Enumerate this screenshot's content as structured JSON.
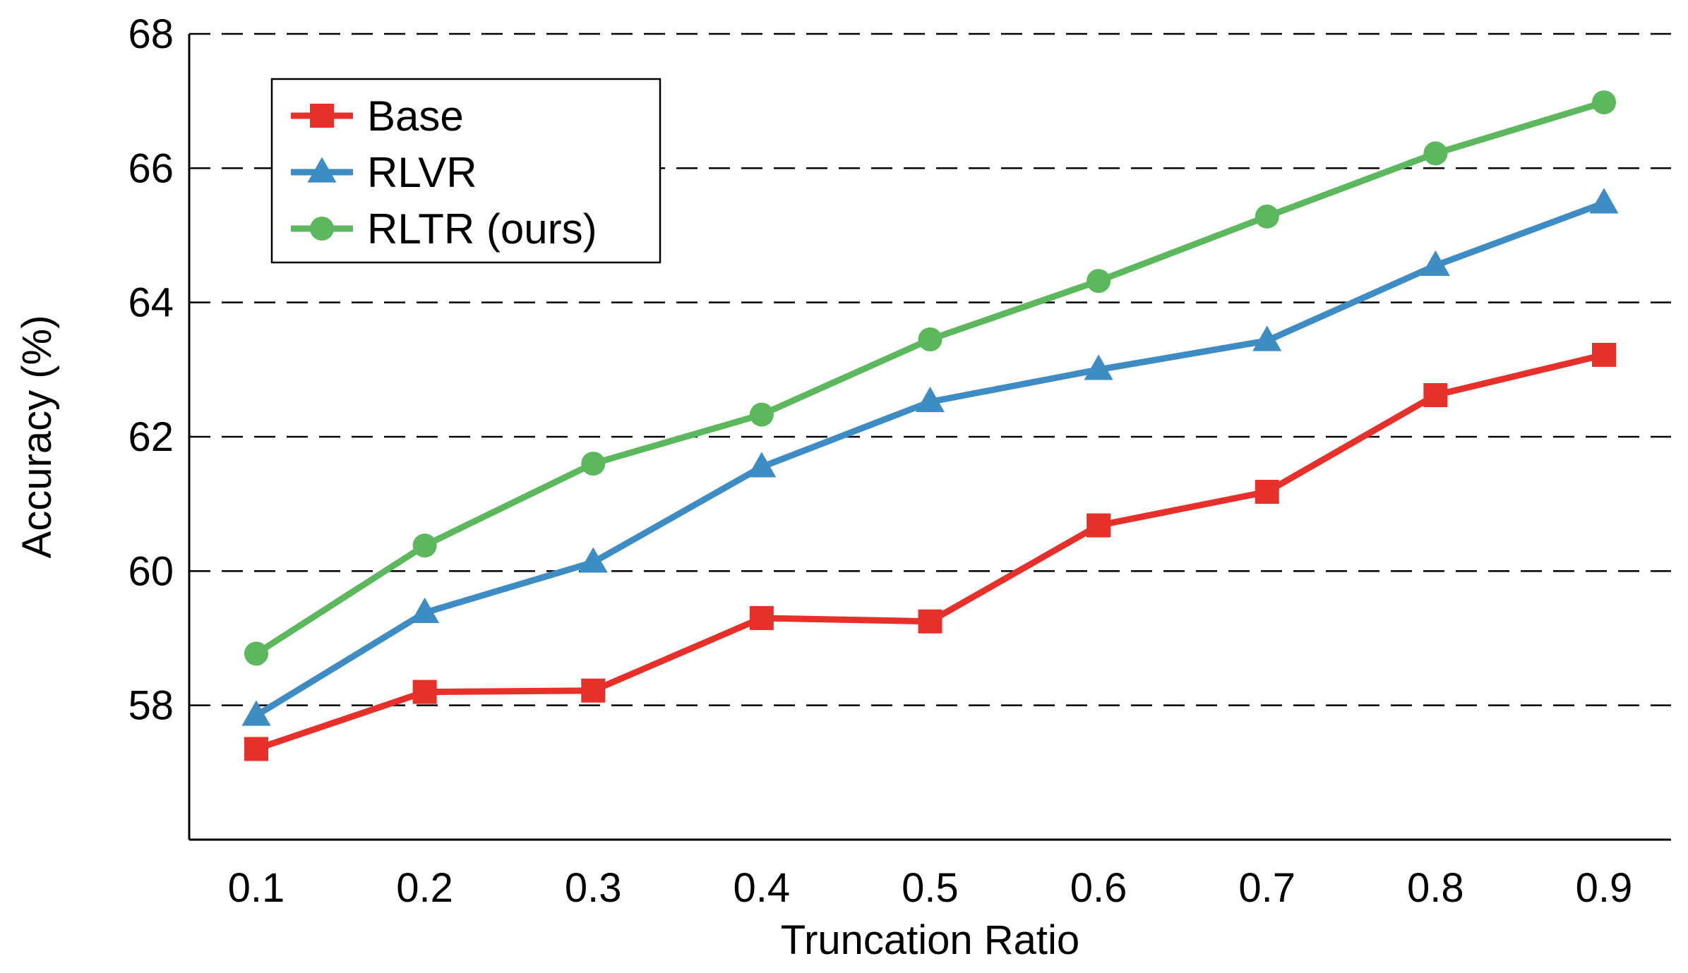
{
  "chart_data": {
    "type": "line",
    "xlabel": "Truncation Ratio",
    "ylabel": "Accuracy (%)",
    "x": [
      0.1,
      0.2,
      0.3,
      0.4,
      0.5,
      0.6,
      0.7,
      0.8,
      0.9
    ],
    "x_tick_labels": [
      "0.1",
      "0.2",
      "0.3",
      "0.4",
      "0.5",
      "0.6",
      "0.7",
      "0.8",
      "0.9"
    ],
    "ylim": [
      56,
      68
    ],
    "y_ticks": [
      58,
      60,
      62,
      64,
      66,
      68
    ],
    "y_tick_labels": [
      "58",
      "60",
      "62",
      "64",
      "66",
      "68"
    ],
    "grid": "horizontal-dashed",
    "legend_position": "top-left",
    "series": [
      {
        "name": "Base",
        "marker": "square",
        "color": "#e8302a",
        "values": [
          57.35,
          58.2,
          58.22,
          59.3,
          59.25,
          60.68,
          61.18,
          62.62,
          63.22
        ]
      },
      {
        "name": "RLVR",
        "marker": "triangle",
        "color": "#3d8cc4",
        "values": [
          57.85,
          59.38,
          60.13,
          61.55,
          62.52,
          63.0,
          63.43,
          64.55,
          65.48
        ]
      },
      {
        "name": "RLTR (ours)",
        "marker": "circle",
        "color": "#5cb85c",
        "values": [
          58.77,
          60.38,
          61.6,
          62.33,
          63.45,
          64.32,
          65.28,
          66.22,
          66.98
        ]
      }
    ]
  }
}
